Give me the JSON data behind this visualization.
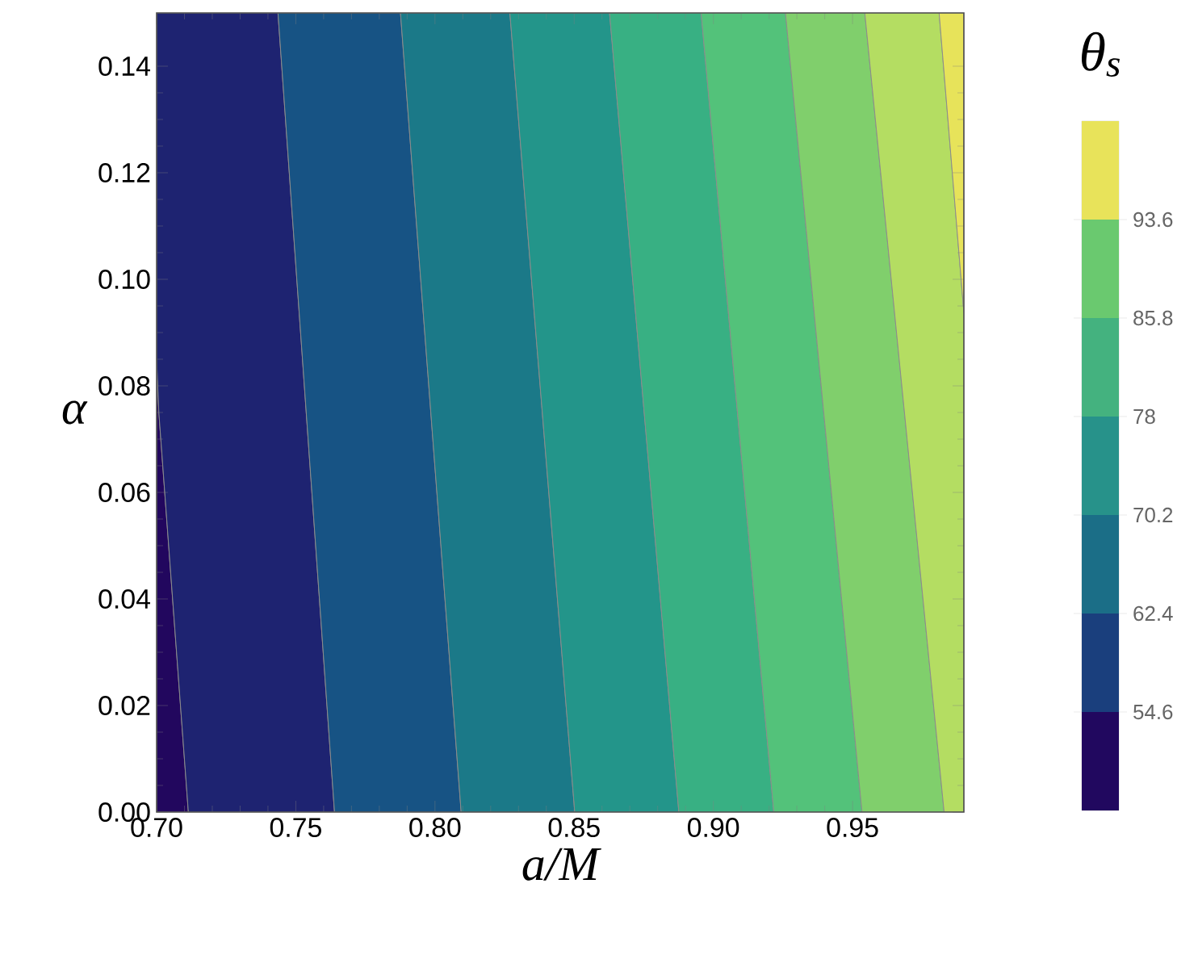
{
  "chart_data": {
    "type": "line",
    "xlabel": "a/M",
    "ylabel": "α",
    "clabel": "θ$_{s}$",
    "xlim": [
      0.7,
      0.99
    ],
    "ylim": [
      0,
      0.15
    ],
    "xticks": [
      {
        "value": 0.7,
        "label": "0.70"
      },
      {
        "value": 0.75,
        "label": "0.75"
      },
      {
        "value": 0.8,
        "label": "0.80"
      },
      {
        "value": 0.85,
        "label": "0.85"
      },
      {
        "value": 0.9,
        "label": "0.90"
      },
      {
        "value": 0.95,
        "label": "0.95"
      }
    ],
    "yticks": [
      {
        "value": 0,
        "label": "0.00"
      },
      {
        "value": 0.02,
        "label": "0.02"
      },
      {
        "value": 0.04,
        "label": "0.04"
      },
      {
        "value": 0.06,
        "label": "0.06"
      },
      {
        "value": 0.08,
        "label": "0.08"
      },
      {
        "value": 0.1,
        "label": "0.10"
      },
      {
        "value": 0.12,
        "label": "0.12"
      },
      {
        "value": 0.14,
        "label": "0.14"
      }
    ],
    "series": [
      {
        "color": "#22075e",
        "x": [
          0.7,
          0.7008,
          0.7114
        ],
        "values": [
          null,
          null,
          null
        ],
        "lower": [
          0,
          0,
          0
        ],
        "upper": [
          0.085,
          0.075,
          0
        ]
      },
      {
        "color": "#1e2371",
        "x": [
          0.7,
          0.7008,
          0.7114,
          0.7436,
          0.7639
        ],
        "values": [
          null,
          null,
          null,
          null,
          null
        ],
        "lower": [
          0.085,
          0.075,
          0,
          0,
          0
        ],
        "upper": [
          0.15,
          0.15,
          0.15,
          0.15,
          0
        ]
      },
      {
        "color": "#175384",
        "x": [
          0.7436,
          0.7639,
          0.7876,
          0.8094
        ],
        "values": [
          null,
          null,
          null,
          null
        ],
        "lower": [
          0.15,
          0,
          0,
          0
        ],
        "upper": [
          0.15,
          0.15,
          0.15,
          0
        ]
      },
      {
        "color": "#1b7988",
        "x": [
          0.7876,
          0.8094,
          0.8269,
          0.8502
        ],
        "values": [
          null,
          null,
          null,
          null
        ],
        "lower": [
          0.15,
          0,
          0,
          0
        ],
        "upper": [
          0.15,
          0.15,
          0.15,
          0
        ]
      },
      {
        "color": "#23958a",
        "x": [
          0.8269,
          0.8502,
          0.8627,
          0.8876
        ],
        "values": [
          null,
          null,
          null,
          null
        ],
        "lower": [
          0.15,
          0,
          0,
          0
        ],
        "upper": [
          0.15,
          0.15,
          0.15,
          0
        ]
      },
      {
        "color": "#38b083",
        "x": [
          0.8627,
          0.8876,
          0.8956,
          0.9217
        ],
        "values": [
          null,
          null,
          null,
          null
        ],
        "lower": [
          0.15,
          0,
          0,
          0
        ],
        "upper": [
          0.15,
          0.15,
          0.15,
          0
        ]
      },
      {
        "color": "#53c27a",
        "x": [
          0.8956,
          0.9217,
          0.9259,
          0.9534
        ],
        "values": [
          null,
          null,
          null,
          null
        ],
        "lower": [
          0.15,
          0,
          0,
          0
        ],
        "upper": [
          0.15,
          0.15,
          0.15,
          0
        ]
      },
      {
        "color": "#80cf6c",
        "x": [
          0.9259,
          0.9534,
          0.9544,
          0.9829
        ],
        "values": [
          null,
          null,
          null,
          null
        ],
        "lower": [
          0.15,
          0,
          0,
          0
        ],
        "upper": [
          0.15,
          0.15,
          0.15,
          0
        ]
      },
      {
        "color": "#b4dd62",
        "x": [
          0.9544,
          0.9811,
          0.9829,
          0.99
        ],
        "values": [
          null,
          null,
          null,
          null
        ],
        "lower": [
          0.15,
          0.0095,
          0,
          0
        ],
        "upper": [
          0.15,
          0.15,
          0.1386,
          0.0937
        ]
      },
      {
        "color": "#e7e35a",
        "x": [
          0.9811,
          0.99
        ],
        "values": [
          null,
          null
        ],
        "lower": [
          0.15,
          0.0937
        ],
        "upper": [
          0.15,
          0.15
        ]
      }
    ],
    "clim": [
      46.8,
      101.4
    ],
    "cticks": [
      54.6,
      62.4,
      70.2,
      78,
      85.8,
      93.6
    ]
  }
}
